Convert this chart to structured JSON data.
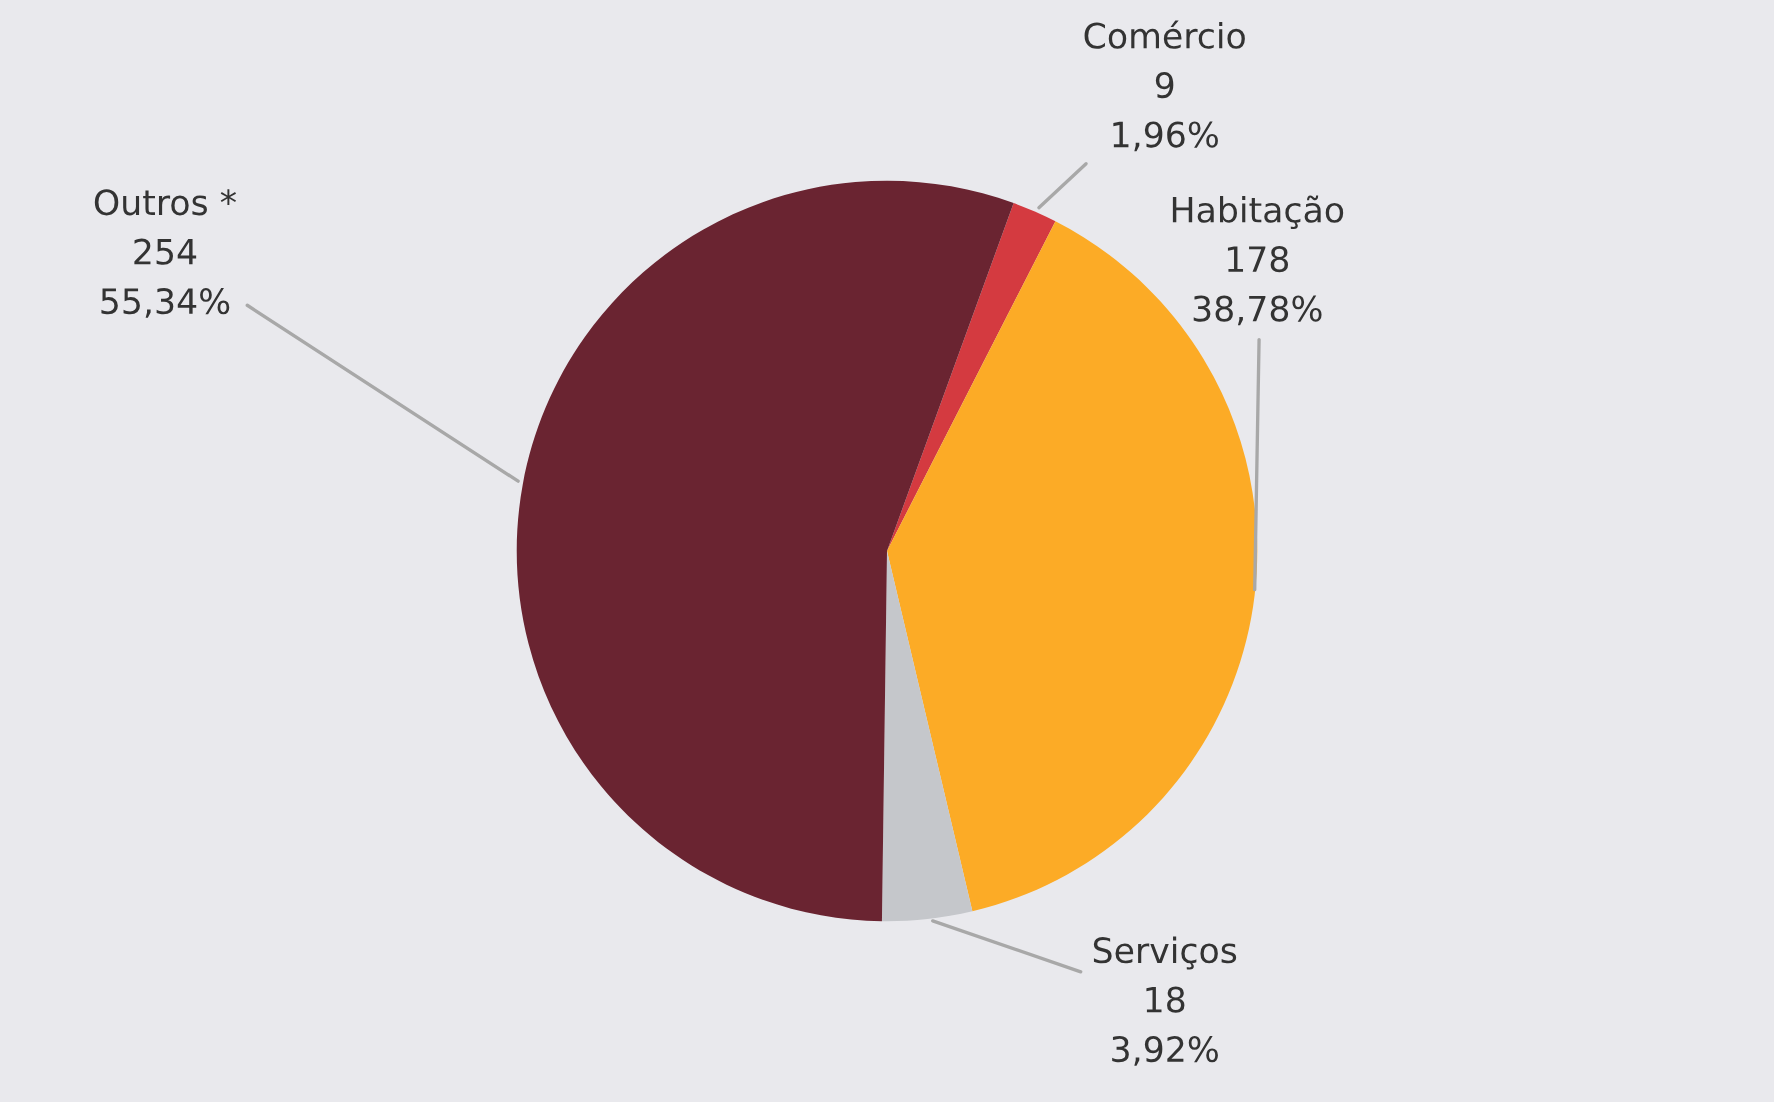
{
  "chart_data": {
    "type": "pie",
    "categories": [
      "Comércio",
      "Habitação",
      "Serviços",
      "Outros *"
    ],
    "values": [
      9,
      178,
      18,
      254
    ],
    "colors": [
      "#d43a40",
      "#fcab26",
      "#c5c7cb",
      "#6a2431"
    ],
    "value_labels": [
      "9\n1,96%",
      "178\n38,78%",
      "18\n3,92%",
      "254\n55,34%"
    ]
  }
}
